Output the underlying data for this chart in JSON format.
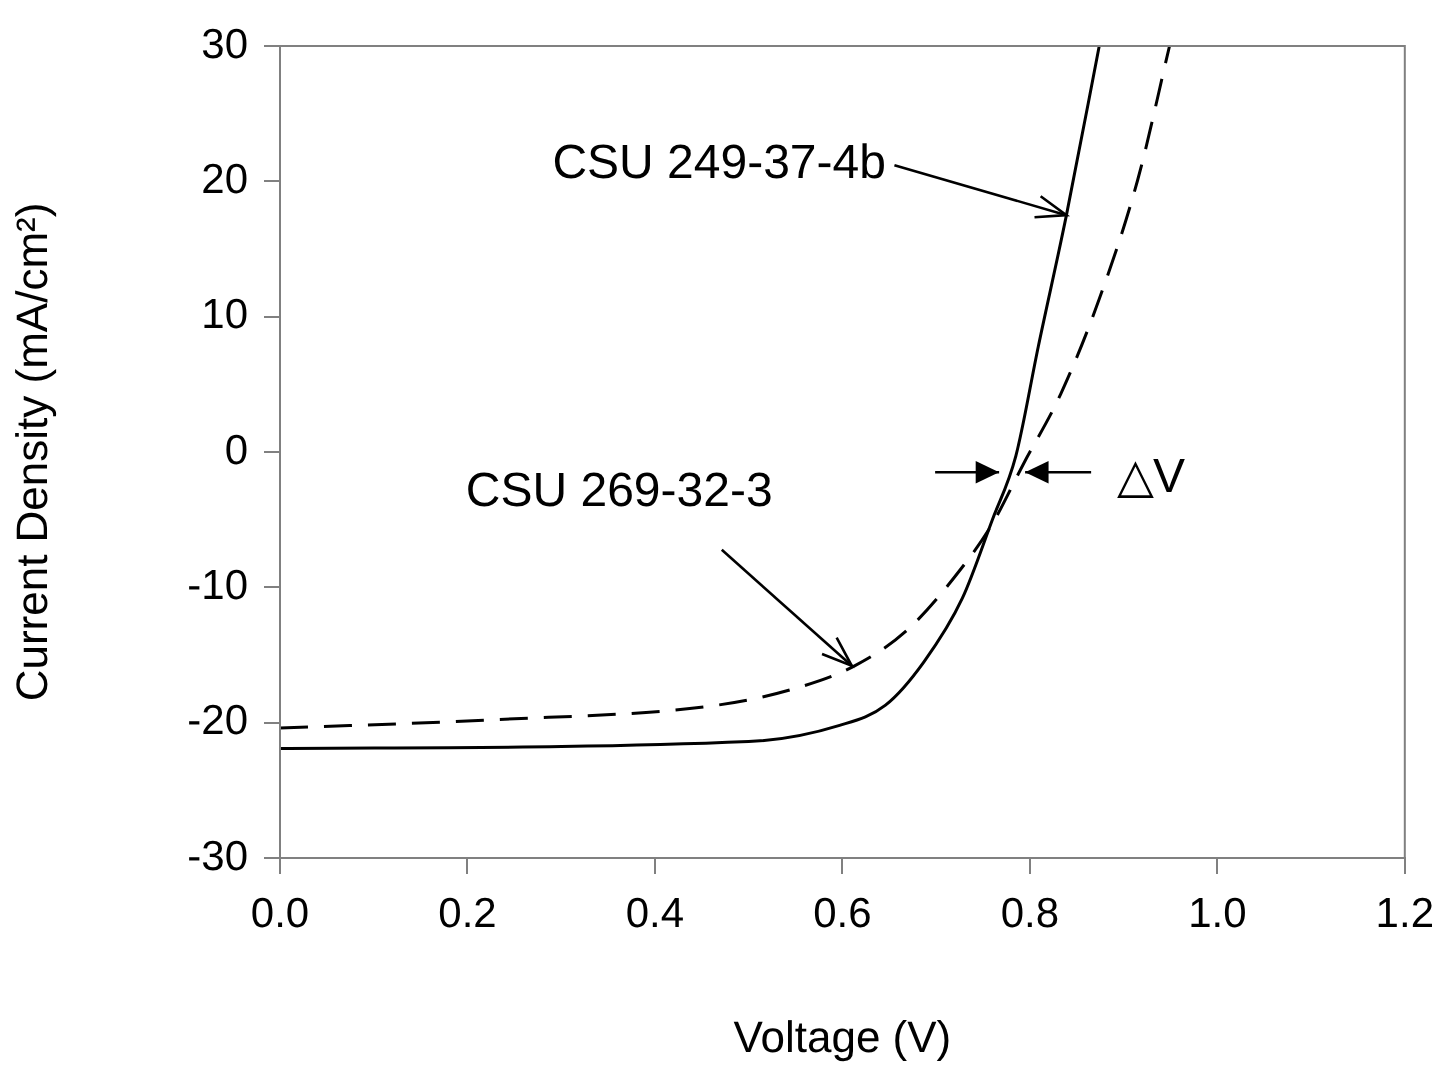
{
  "chart_data": {
    "type": "line",
    "xlabel": "Voltage (V)",
    "ylabel": "Current Density (mA/cm²)",
    "xlim": [
      0,
      1.2
    ],
    "ylim": [
      -30,
      30
    ],
    "xticks": [
      {
        "value": 0,
        "label": "0.0"
      },
      {
        "value": 0.2,
        "label": "0.2"
      },
      {
        "value": 0.4,
        "label": "0.4"
      },
      {
        "value": 0.6,
        "label": "0.6"
      },
      {
        "value": 0.8,
        "label": "0.8"
      },
      {
        "value": 1,
        "label": "1.0"
      },
      {
        "value": 1.2,
        "label": "1.2"
      }
    ],
    "yticks": [
      -30,
      -20,
      -10,
      0,
      10,
      20,
      30
    ],
    "grid": false,
    "legend": false,
    "marker": "none",
    "series": [
      {
        "color": "#000000",
        "line_style": "solid",
        "x": [
          0,
          0.5,
          0.597,
          0.646,
          0.687,
          0.728,
          0.76,
          0.785,
          0.809,
          0.839,
          0.874
        ],
        "values": [
          -21.9,
          -21.4,
          -20.2,
          -18.7,
          -15.5,
          -10.8,
          -5.0,
          -0.3,
          7.8,
          17.5,
          30
        ]
      },
      {
        "color": "#000000",
        "line_style": "dashed",
        "x": [
          0,
          0.222,
          0.467,
          0.548,
          0.613,
          0.67,
          0.728,
          0.76,
          0.793,
          0.833,
          0.874,
          0.915,
          0.949
        ],
        "values": [
          -20.4,
          -19.8,
          -18.7,
          -17.5,
          -15.8,
          -13.1,
          -8.5,
          -5.3,
          -0.9,
          4.3,
          11.3,
          20.1,
          30
        ]
      }
    ],
    "annotations": [
      {
        "text": "CSU 249-37-4b",
        "x": 0.839,
        "y": 17.5
      },
      {
        "text": "CSU 269-32-3",
        "x": 0.61,
        "y": -15.8
      },
      {
        "text": "△V",
        "x": 0.78,
        "y": -1.5
      }
    ]
  }
}
